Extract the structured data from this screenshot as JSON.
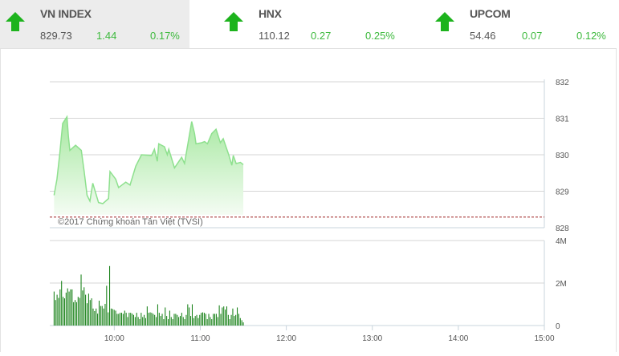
{
  "indices": [
    {
      "name": "VN INDEX",
      "value": "829.73",
      "change": "1.44",
      "percent": "0.17%",
      "direction": "up",
      "active": true
    },
    {
      "name": "HNX",
      "value": "110.12",
      "change": "0.27",
      "percent": "0.25%",
      "direction": "up",
      "active": false
    },
    {
      "name": "UPCOM",
      "value": "54.46",
      "change": "0.07",
      "percent": "0.12%",
      "direction": "up",
      "active": false
    }
  ],
  "colors": {
    "up": "#1db31d",
    "change_text": "#3cb93c",
    "line": "#8ee08e",
    "fill_top": "#a6e8a0",
    "volume": "#0a7a0a",
    "reference": "#9b1c1c"
  },
  "chart_data": [
    {
      "type": "area",
      "watermark": "©2017 Chứng khoán Tân Việt (TVSI)",
      "xlim": [
        "09:15",
        "15:00"
      ],
      "ylim": [
        828,
        832
      ],
      "y_ticks": [
        "832",
        "831",
        "830",
        "829",
        "828"
      ],
      "reference_value": 828.29,
      "grid": true,
      "points": [
        [
          "09:18",
          828.89
        ],
        [
          "09:20",
          829.33
        ],
        [
          "09:22",
          830.04
        ],
        [
          "09:24",
          830.86
        ],
        [
          "09:27",
          831.04
        ],
        [
          "09:28",
          830.5
        ],
        [
          "09:29",
          830.12
        ],
        [
          "09:33",
          830.26
        ],
        [
          "09:37",
          830.12
        ],
        [
          "09:39",
          829.54
        ],
        [
          "09:41",
          828.89
        ],
        [
          "09:43",
          828.73
        ],
        [
          "09:45",
          829.22
        ],
        [
          "09:49",
          828.69
        ],
        [
          "09:52",
          828.66
        ],
        [
          "09:56",
          828.8
        ],
        [
          "09:57",
          829.54
        ],
        [
          "10:01",
          829.33
        ],
        [
          "10:03",
          829.1
        ],
        [
          "10:08",
          829.25
        ],
        [
          "10:11",
          829.17
        ],
        [
          "10:15",
          829.69
        ],
        [
          "10:19",
          830.0
        ],
        [
          "10:26",
          829.98
        ],
        [
          "10:28",
          830.15
        ],
        [
          "10:30",
          829.82
        ],
        [
          "10:31",
          830.3
        ],
        [
          "10:35",
          830.22
        ],
        [
          "10:37",
          830.0
        ],
        [
          "10:38",
          830.15
        ],
        [
          "10:42",
          829.64
        ],
        [
          "10:47",
          829.93
        ],
        [
          "10:49",
          829.76
        ],
        [
          "10:54",
          830.91
        ],
        [
          "10:56",
          830.58
        ],
        [
          "10:57",
          830.3
        ],
        [
          "11:01",
          830.33
        ],
        [
          "11:03",
          830.36
        ],
        [
          "11:05",
          830.3
        ],
        [
          "11:08",
          830.58
        ],
        [
          "11:11",
          830.7
        ],
        [
          "11:14",
          830.33
        ],
        [
          "11:16",
          830.44
        ],
        [
          "11:20",
          829.98
        ],
        [
          "11:22",
          829.71
        ],
        [
          "11:23",
          829.98
        ],
        [
          "11:25",
          829.76
        ],
        [
          "11:28",
          829.79
        ],
        [
          "11:30",
          829.73
        ]
      ]
    },
    {
      "type": "bar",
      "xlim": [
        "09:15",
        "15:00"
      ],
      "ylim": [
        0,
        4000000
      ],
      "y_ticks": [
        "4M",
        "2M",
        "0"
      ],
      "x_ticks": [
        "10:00",
        "11:00",
        "12:00",
        "13:00",
        "14:00",
        "15:00"
      ],
      "grid": true,
      "start": "09:18",
      "end": "11:30",
      "values": [
        1.6,
        1.2,
        1.45,
        1.3,
        1.7,
        2.1,
        1.35,
        1.28,
        1.55,
        1.75,
        1.6,
        1.7,
        1.7,
        1.1,
        1.2,
        1.1,
        1.35,
        1.3,
        2.4,
        1.65,
        1.8,
        1.45,
        1.05,
        1.5,
        1.2,
        1.28,
        0.8,
        0.68,
        0.8,
        0.56,
        1.17,
        0.92,
        0.92,
        0.8,
        1.02,
        1.87,
        0.62,
        2.8,
        0.8,
        0.78,
        0.74,
        0.7,
        0.55,
        0.55,
        0.6,
        0.6,
        0.55,
        0.7,
        0.6,
        0.4,
        0.6,
        0.6,
        0.56,
        0.5,
        0.4,
        0.6,
        0.4,
        0.3,
        0.6,
        0.4,
        0.5,
        0.35,
        0.9,
        0.6,
        0.62,
        0.6,
        0.55,
        0.5,
        0.4,
        1.0,
        0.6,
        0.45,
        0.55,
        0.3,
        0.85,
        0.45,
        0.3,
        0.7,
        0.4,
        0.3,
        0.55,
        0.55,
        0.5,
        0.4,
        0.45,
        0.6,
        0.4,
        0.3,
        0.5,
        1.0,
        0.85,
        0.45,
        1.0,
        0.35,
        0.45,
        0.5,
        0.35,
        0.5,
        0.6,
        0.62,
        0.6,
        0.55,
        0.3,
        0.55,
        0.4,
        0.3,
        0.55,
        0.55,
        0.55,
        0.4,
        0.95,
        0.55,
        0.85,
        0.9,
        0.75,
        0.9,
        0.5,
        0.3,
        0.5,
        0.8,
        0.45,
        0.5,
        0.85,
        0.55,
        0.35,
        0.25,
        0.15
      ]
    }
  ]
}
